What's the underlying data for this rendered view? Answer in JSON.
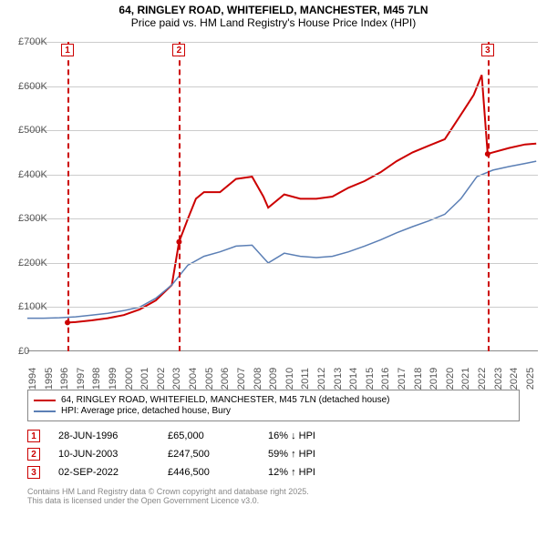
{
  "title": {
    "line1": "64, RINGLEY ROAD, WHITEFIELD, MANCHESTER, M45 7LN",
    "line2": "Price paid vs. HM Land Registry's House Price Index (HPI)"
  },
  "chart": {
    "type": "line",
    "background": "#ffffff",
    "grid_color": "#cccccc",
    "axis_color": "#888888",
    "xlim": [
      1994,
      2025.8
    ],
    "ylim": [
      0,
      700000
    ],
    "ytick_step": 100000,
    "ytick_labels": [
      "£0",
      "£100K",
      "£200K",
      "£300K",
      "£400K",
      "£500K",
      "£600K",
      "£700K"
    ],
    "xtick_step": 1,
    "xtick_labels": [
      "1994",
      "1995",
      "1996",
      "1997",
      "1998",
      "1999",
      "2000",
      "2001",
      "2002",
      "2003",
      "2004",
      "2005",
      "2006",
      "2007",
      "2008",
      "2009",
      "2010",
      "2011",
      "2012",
      "2013",
      "2014",
      "2015",
      "2016",
      "2017",
      "2018",
      "2019",
      "2020",
      "2021",
      "2022",
      "2023",
      "2024",
      "2025"
    ],
    "label_fontsize": 11,
    "label_color": "#555555",
    "series": [
      {
        "name": "64, RINGLEY ROAD, WHITEFIELD, MANCHESTER, M45 7LN (detached house)",
        "color": "#cc0000",
        "line_width": 2,
        "data": [
          [
            1996.5,
            65000
          ],
          [
            1997,
            66000
          ],
          [
            1998,
            70000
          ],
          [
            1999,
            75000
          ],
          [
            2000,
            82000
          ],
          [
            2001,
            95000
          ],
          [
            2002,
            115000
          ],
          [
            2003,
            150000
          ],
          [
            2003.45,
            247500
          ],
          [
            2004,
            300000
          ],
          [
            2004.5,
            345000
          ],
          [
            2005,
            360000
          ],
          [
            2006,
            360000
          ],
          [
            2007,
            390000
          ],
          [
            2008,
            395000
          ],
          [
            2008.7,
            350000
          ],
          [
            2009,
            325000
          ],
          [
            2010,
            355000
          ],
          [
            2011,
            345000
          ],
          [
            2012,
            345000
          ],
          [
            2013,
            350000
          ],
          [
            2014,
            370000
          ],
          [
            2015,
            385000
          ],
          [
            2016,
            405000
          ],
          [
            2017,
            430000
          ],
          [
            2018,
            450000
          ],
          [
            2019,
            465000
          ],
          [
            2020,
            480000
          ],
          [
            2021,
            535000
          ],
          [
            2021.8,
            580000
          ],
          [
            2022.3,
            625000
          ],
          [
            2022.67,
            446500
          ],
          [
            2023,
            450000
          ],
          [
            2024,
            460000
          ],
          [
            2025,
            468000
          ],
          [
            2025.7,
            470000
          ]
        ]
      },
      {
        "name": "HPI: Average price, detached house, Bury",
        "color": "#5b7fb5",
        "line_width": 1.5,
        "data": [
          [
            1994,
            75000
          ],
          [
            1995,
            75000
          ],
          [
            1996,
            76000
          ],
          [
            1997,
            78000
          ],
          [
            1998,
            82000
          ],
          [
            1999,
            86000
          ],
          [
            2000,
            92000
          ],
          [
            2001,
            100000
          ],
          [
            2002,
            120000
          ],
          [
            2003,
            150000
          ],
          [
            2004,
            195000
          ],
          [
            2005,
            215000
          ],
          [
            2006,
            225000
          ],
          [
            2007,
            238000
          ],
          [
            2008,
            240000
          ],
          [
            2008.8,
            208000
          ],
          [
            2009,
            200000
          ],
          [
            2010,
            222000
          ],
          [
            2011,
            215000
          ],
          [
            2012,
            212000
          ],
          [
            2013,
            215000
          ],
          [
            2014,
            225000
          ],
          [
            2015,
            238000
          ],
          [
            2016,
            252000
          ],
          [
            2017,
            268000
          ],
          [
            2018,
            282000
          ],
          [
            2019,
            295000
          ],
          [
            2020,
            310000
          ],
          [
            2021,
            345000
          ],
          [
            2022,
            395000
          ],
          [
            2023,
            410000
          ],
          [
            2024,
            418000
          ],
          [
            2025,
            425000
          ],
          [
            2025.7,
            430000
          ]
        ]
      }
    ],
    "markers": [
      {
        "id": "1",
        "x": 1996.5,
        "color": "#cc0000"
      },
      {
        "id": "2",
        "x": 2003.45,
        "color": "#cc0000"
      },
      {
        "id": "3",
        "x": 2022.67,
        "color": "#cc0000"
      }
    ]
  },
  "legend": {
    "items": [
      {
        "color": "#cc0000",
        "label": "64, RINGLEY ROAD, WHITEFIELD, MANCHESTER, M45 7LN (detached house)"
      },
      {
        "color": "#5b7fb5",
        "label": "HPI: Average price, detached house, Bury"
      }
    ]
  },
  "transactions": [
    {
      "id": "1",
      "color": "#cc0000",
      "date": "28-JUN-1996",
      "price": "£65,000",
      "hpi": "16% ↓ HPI"
    },
    {
      "id": "2",
      "color": "#cc0000",
      "date": "10-JUN-2003",
      "price": "£247,500",
      "hpi": "59% ↑ HPI"
    },
    {
      "id": "3",
      "color": "#cc0000",
      "date": "02-SEP-2022",
      "price": "£446,500",
      "hpi": "12% ↑ HPI"
    }
  ],
  "footer": {
    "line1": "Contains HM Land Registry data © Crown copyright and database right 2025.",
    "line2": "This data is licensed under the Open Government Licence v3.0."
  }
}
